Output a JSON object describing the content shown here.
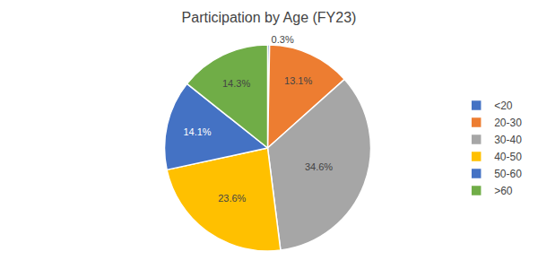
{
  "chart_data": {
    "type": "pie",
    "title": "Participation by Age (FY23)",
    "categories": [
      "<20",
      "20-30",
      "30-40",
      "40-50",
      "50-60",
      ">60"
    ],
    "values": [
      0.3,
      13.1,
      34.6,
      23.6,
      14.1,
      14.3
    ],
    "value_labels": [
      "0.3%",
      "13.1%",
      "34.6%",
      "23.6%",
      "14.1%",
      "14.3%"
    ],
    "colors": [
      "#4472c4",
      "#ed7d31",
      "#a6a6a6",
      "#ffc000",
      "#4472c4",
      "#70ad47"
    ],
    "data_labels": true,
    "legend": "right"
  }
}
